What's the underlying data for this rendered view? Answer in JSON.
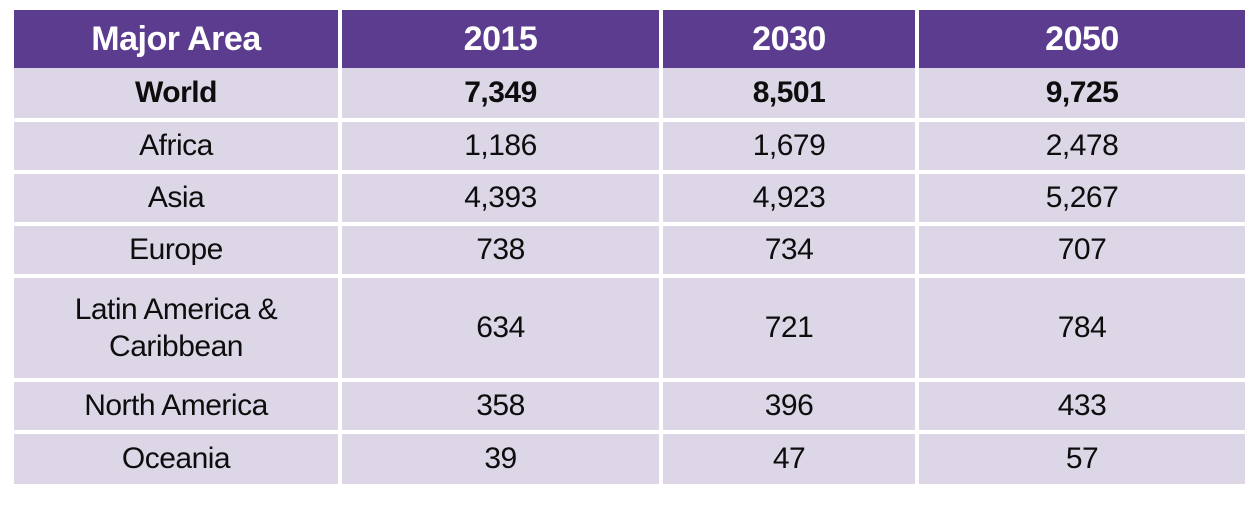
{
  "table": {
    "headers": [
      "Major Area",
      "2015",
      "2030",
      "2050"
    ],
    "rows": [
      {
        "label": "World",
        "values": [
          "7,349",
          "8,501",
          "9,725"
        ],
        "bold": true,
        "tall": false
      },
      {
        "label": "Africa",
        "values": [
          "1,186",
          "1,679",
          "2,478"
        ],
        "bold": false,
        "tall": false
      },
      {
        "label": "Asia",
        "values": [
          "4,393",
          "4,923",
          "5,267"
        ],
        "bold": false,
        "tall": false
      },
      {
        "label": "Europe",
        "values": [
          "738",
          "734",
          "707"
        ],
        "bold": false,
        "tall": false
      },
      {
        "label": "Latin America & Caribbean",
        "values": [
          "634",
          "721",
          "784"
        ],
        "bold": false,
        "tall": true
      },
      {
        "label": "North America",
        "values": [
          "358",
          "396",
          "433"
        ],
        "bold": false,
        "tall": false
      },
      {
        "label": "Oceania",
        "values": [
          "39",
          "47",
          "57"
        ],
        "bold": false,
        "tall": false
      }
    ]
  },
  "colors": {
    "header_bg": "#5b3c8f",
    "header_text": "#ffffff",
    "row_bg": "#dcd6e6",
    "body_text": "#0d0d0d"
  },
  "chart_data": {
    "type": "table",
    "columns": [
      "Major Area",
      "2015",
      "2030",
      "2050"
    ],
    "rows": [
      [
        "World",
        7349,
        8501,
        9725
      ],
      [
        "Africa",
        1186,
        1679,
        2478
      ],
      [
        "Asia",
        4393,
        4923,
        5267
      ],
      [
        "Europe",
        738,
        734,
        707
      ],
      [
        "Latin America & Caribbean",
        634,
        721,
        784
      ],
      [
        "North America",
        358,
        396,
        433
      ],
      [
        "Oceania",
        39,
        47,
        57
      ]
    ]
  }
}
